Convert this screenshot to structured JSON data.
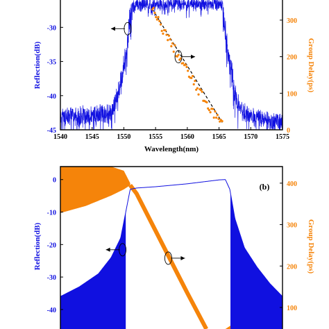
{
  "colors": {
    "reflection": "#1010e0",
    "delay": "#f5840a",
    "fit": "#000000",
    "frame": "#000000"
  },
  "chart_data": [
    {
      "panel": "a",
      "type": "line",
      "xlabel": "Wavelength(nm)",
      "ylabel": "Reflection(dB)",
      "ylabel_right": "Group Delay(ps)",
      "xlim": [
        1540,
        1575
      ],
      "ylim": [
        -45,
        -26
      ],
      "ylim_right": [
        0,
        355
      ],
      "xticks": [
        1540,
        1545,
        1550,
        1555,
        1560,
        1565,
        1570,
        1575
      ],
      "yticks": [
        -45,
        -40,
        -35,
        -30
      ],
      "yticks_right": [
        0,
        100,
        200,
        300
      ],
      "series": [
        {
          "axis": "left",
          "style": "noisy-line",
          "x": [
            1540,
            1545,
            1548,
            1549,
            1549.8,
            1550.4,
            1551,
            1552,
            1553,
            1554,
            1555,
            1556,
            1558,
            1560,
            1562,
            1564,
            1565.5,
            1566,
            1566.5,
            1567,
            1567.5,
            1568,
            1569,
            1570,
            1572,
            1575
          ],
          "y": [
            -42,
            -41.8,
            -41.5,
            -39,
            -35,
            -32,
            -27,
            -26,
            -26,
            -26,
            -26,
            -26,
            -26,
            -26,
            -26,
            -26,
            -26,
            -29,
            -33,
            -35,
            -38,
            -40,
            -41.5,
            -42,
            -42.5,
            -43
          ]
        },
        {
          "axis": "right",
          "style": "dots",
          "x": [
            1554.5,
            1555,
            1556,
            1557,
            1558,
            1559,
            1560,
            1561,
            1562,
            1563,
            1564,
            1565,
            1565.5
          ],
          "y": [
            330,
            310,
            280,
            250,
            220,
            190,
            160,
            130,
            100,
            75,
            50,
            25,
            15
          ]
        },
        {
          "axis": "right",
          "style": "dashed-fit",
          "x": [
            1554.5,
            1565.5
          ],
          "y": [
            330,
            20
          ]
        }
      ],
      "annotations": [
        {
          "x": 1550.6,
          "y": -30.2,
          "direction": "left"
        },
        {
          "x": 1558.6,
          "y": -34.3,
          "direction": "right"
        }
      ]
    },
    {
      "panel": "b",
      "type": "line",
      "panel_label": "(b)",
      "ylabel": "Reflection(dB)",
      "ylabel_right": "Group Delay(ps)",
      "xlim": [
        1540,
        1575
      ],
      "ylim": [
        -46,
        4
      ],
      "ylim_right": [
        48,
        440
      ],
      "yticks": [
        -40,
        -30,
        -20,
        -10,
        0
      ],
      "yticks_right": [
        100,
        200,
        300,
        400
      ],
      "series": [
        {
          "axis": "left",
          "style": "line",
          "x": [
            1540,
            1543,
            1546,
            1548,
            1549.5,
            1550.5,
            1551,
            1552,
            1555,
            1560,
            1565,
            1566,
            1566.7,
            1567.5,
            1569,
            1571,
            1573,
            1575
          ],
          "y": [
            -36,
            -33,
            -29,
            -24,
            -18,
            -8,
            -3,
            -2.6,
            -2.2,
            -1.3,
            -0.1,
            0,
            -3,
            -12,
            -21,
            -27,
            -32,
            -36
          ]
        },
        {
          "axis": "left",
          "style": "sidelobe-envelope",
          "x": [
            1540,
            1543,
            1546,
            1548,
            1549.5,
            1550.3
          ],
          "y": [
            -46,
            -46,
            -46,
            -46,
            -46,
            -46
          ]
        },
        {
          "axis": "left",
          "style": "sidelobe-envelope",
          "x": [
            1566.8,
            1568,
            1570,
            1572,
            1575
          ],
          "y": [
            -46,
            -46,
            -46,
            -46,
            -46
          ]
        },
        {
          "axis": "right",
          "style": "line",
          "x": [
            1551,
            1552,
            1555,
            1558,
            1560,
            1563
          ],
          "y": [
            395,
            375,
            285,
            195,
            135,
            48
          ]
        },
        {
          "axis": "right",
          "style": "ripple-band-upper",
          "x": [
            1540,
            1544,
            1548,
            1550,
            1551
          ],
          "y": [
            440,
            440,
            440,
            430,
            400
          ]
        },
        {
          "axis": "right",
          "style": "ripple-band-lower",
          "x": [
            1540,
            1544,
            1548,
            1550,
            1551
          ],
          "y": [
            328,
            345,
            370,
            385,
            395
          ]
        },
        {
          "axis": "right",
          "style": "ripple-band-upper",
          "x": [
            1566,
            1568,
            1571,
            1575
          ],
          "y": [
            48,
            68,
            75,
            78
          ]
        }
      ],
      "annotations": [
        {
          "x": 1549.8,
          "y": -21.6,
          "direction": "left"
        },
        {
          "x": 1557,
          "y": -24.2,
          "direction": "right"
        }
      ]
    }
  ]
}
